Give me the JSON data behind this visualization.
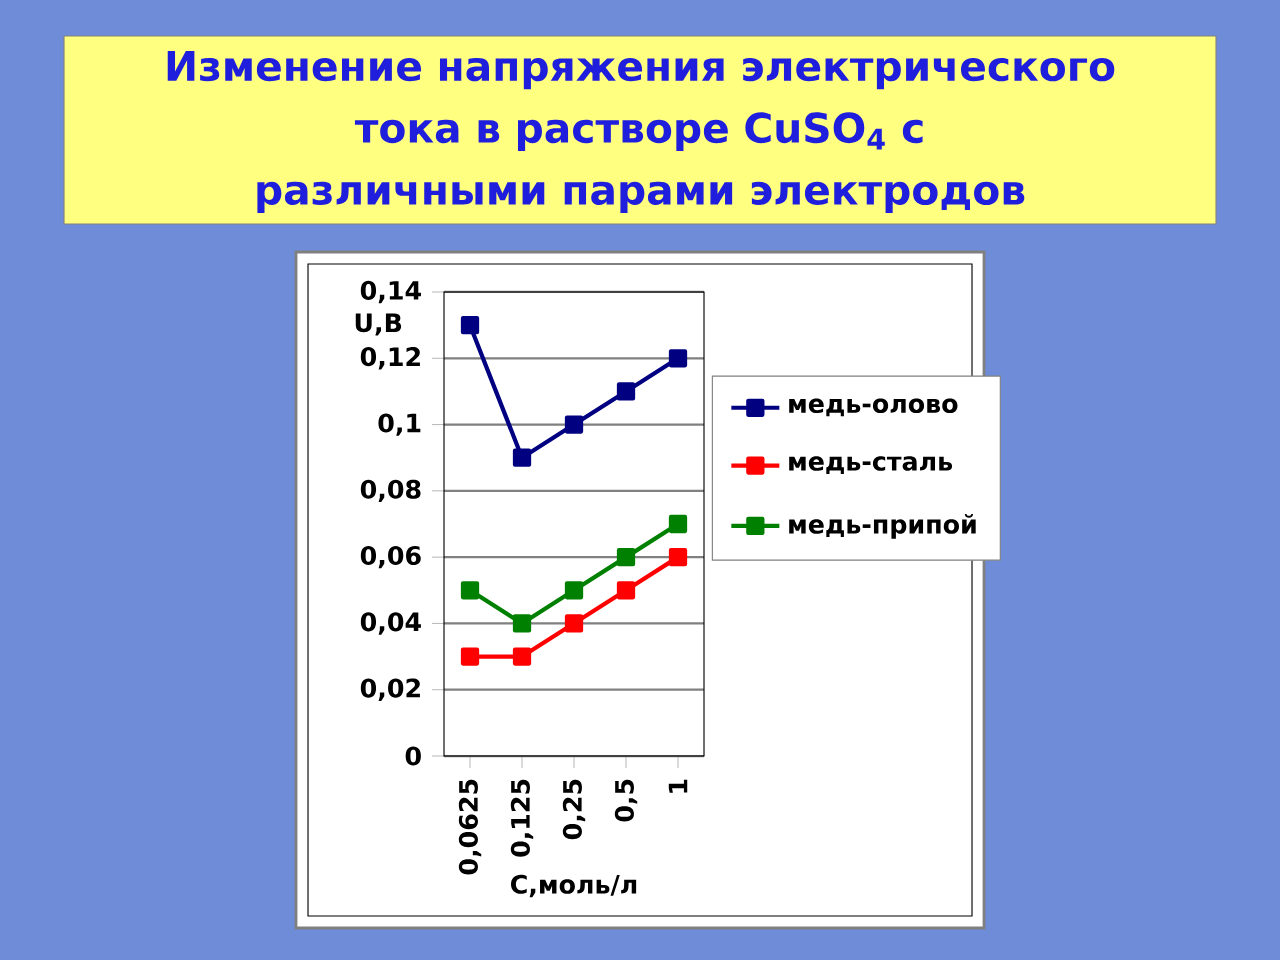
{
  "chart_data": {
    "type": "line",
    "title": "Изменение напряжения электрического тока в растворе CuSO$_{4}$ с различными парами электродов",
    "xlabel": "С,моль/л",
    "ylabel": "U,B",
    "categories": [
      "0,0625",
      "0,125",
      "0,25",
      "0,5",
      "1"
    ],
    "series": [
      {
        "name": "медь-олово",
        "color": "#000080",
        "values": [
          0.13,
          0.09,
          0.1,
          0.11,
          0.12
        ]
      },
      {
        "name": "медь-сталь",
        "color": "#ff0000",
        "values": [
          0.03,
          0.03,
          0.04,
          0.05,
          0.06
        ]
      },
      {
        "name": "медь-припой",
        "color": "#008000",
        "values": [
          0.05,
          0.04,
          0.05,
          0.06,
          0.07
        ]
      }
    ],
    "ylim": [
      0,
      0.14
    ],
    "yticks": [
      0,
      {
        "value": 0.02,
        "label": "0,02"
      },
      {
        "value": 0.04,
        "label": "0,04"
      },
      {
        "value": 0.06,
        "label": "0,06"
      },
      {
        "value": 0.08,
        "label": "0,08"
      },
      {
        "value": 0.1,
        "label": "0,1"
      },
      {
        "value": 0.12,
        "label": "0,12"
      },
      {
        "value": 0.14,
        "label": "0,14"
      }
    ],
    "grid": "y",
    "legend": "right",
    "marker": "square",
    "line_style": "solid"
  }
}
